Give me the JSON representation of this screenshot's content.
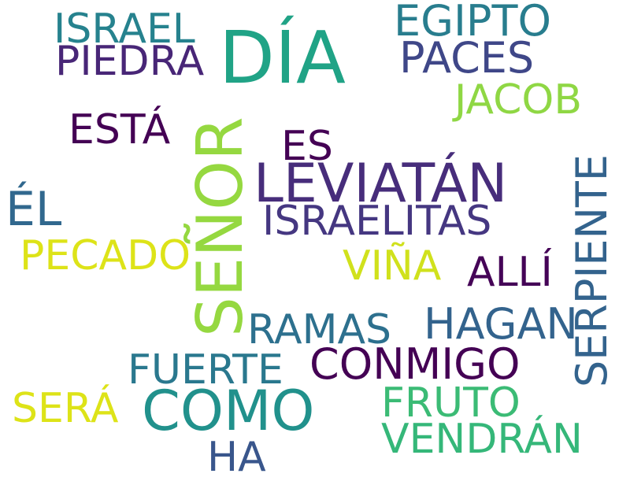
{
  "words": [
    {
      "text": "DÍA",
      "color": "#20a386"
    },
    {
      "text": "SEÑOR",
      "color": "#95d840"
    },
    {
      "text": "LEVIATÁN",
      "color": "#472d7b"
    },
    {
      "text": "COMO",
      "color": "#21918c"
    },
    {
      "text": "SERPIENTE",
      "color": "#33638d"
    },
    {
      "text": "ISRAEL",
      "color": "#26828e"
    },
    {
      "text": "EGIPTO",
      "color": "#287d8e"
    },
    {
      "text": "PIEDRA",
      "color": "#482677"
    },
    {
      "text": "PACES",
      "color": "#3f4788"
    },
    {
      "text": "JACOB",
      "color": "#8fd744"
    },
    {
      "text": "ESTÁ",
      "color": "#440154"
    },
    {
      "text": "ES",
      "color": "#440154"
    },
    {
      "text": "ÉL",
      "color": "#31688e"
    },
    {
      "text": "ISRAELITAS",
      "color": "#453781"
    },
    {
      "text": "PECADO",
      "color": "#dde318"
    },
    {
      "text": "VIÑA",
      "color": "#d0e11c"
    },
    {
      "text": "ALLÍ",
      "color": "#450457"
    },
    {
      "text": "RAMAS",
      "color": "#2d708e"
    },
    {
      "text": "HAGAN",
      "color": "#33638d"
    },
    {
      "text": "FUERTE",
      "color": "#2a788e"
    },
    {
      "text": "CONMIGO",
      "color": "#440154"
    },
    {
      "text": "SERÁ",
      "color": "#dde318"
    },
    {
      "text": "FRUTO",
      "color": "#3bbb75"
    },
    {
      "text": "VENDRÁN",
      "color": "#35b779"
    },
    {
      "text": "HA",
      "color": "#39568c"
    }
  ]
}
